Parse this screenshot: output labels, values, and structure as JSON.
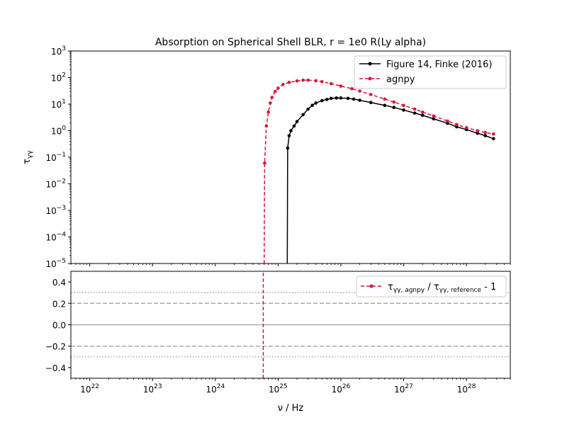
{
  "chart_data": [
    {
      "type": "line",
      "title": "Absorption on Spherical Shell BLR, r = 1e0 R(Ly alpha)",
      "xlabel": "ν / Hz",
      "ylabel": "τγγ",
      "xscale": "log",
      "yscale": "log",
      "xlim": [
        5e+21,
        5e+28
      ],
      "ylim": [
        1e-05,
        1000.0
      ],
      "x_ticks": [
        "10^22",
        "10^23",
        "10^24",
        "10^25",
        "10^26",
        "10^27",
        "10^28"
      ],
      "y_ticks": [
        "10^-5",
        "10^-4",
        "10^-3",
        "10^-2",
        "10^-1",
        "10^0",
        "10^1",
        "10^2",
        "10^3"
      ],
      "grid": false,
      "legend_position": "top-right",
      "series": [
        {
          "name": "Figure 14, Finke (2016)",
          "color": "#000000",
          "style": "solid",
          "marker": "dot",
          "x": [
            1.4e+25,
            1.42e+25,
            1.5e+25,
            1.6e+25,
            1.8e+25,
            2e+25,
            2.5e+25,
            3e+25,
            3.5e+25,
            4e+25,
            5e+25,
            6e+25,
            7e+25,
            8.5e+25,
            1e+26,
            1.3e+26,
            1.6e+26,
            2e+26,
            3e+26,
            5e+26,
            7e+26,
            1e+27,
            1.5e+27,
            2e+27,
            3e+27,
            5e+27,
            7e+27,
            1e+28,
            1.5e+28,
            2e+28,
            2.7e+28
          ],
          "y": [
            1e-05,
            0.22,
            0.65,
            1.0,
            1.5,
            2.2,
            4.0,
            6.5,
            9.0,
            11.0,
            13.5,
            15.0,
            16.5,
            17.0,
            17.0,
            16.5,
            15.5,
            14.0,
            11.5,
            9.0,
            7.5,
            6.0,
            4.6,
            3.8,
            2.8,
            1.9,
            1.4,
            1.1,
            0.8,
            0.65,
            0.5
          ]
        },
        {
          "name": "agnpy",
          "color": "#dc143c",
          "style": "dashed",
          "marker": "dot",
          "x": [
            6e+24,
            6.1e+24,
            6.5e+24,
            7e+24,
            7.5e+24,
            8e+24,
            9e+24,
            1e+25,
            1.2e+25,
            1.5e+25,
            2e+25,
            2.5e+25,
            3e+25,
            4e+25,
            5e+25,
            7e+25,
            1e+26,
            1.5e+26,
            2e+26,
            3e+26,
            5e+26,
            7e+26,
            1e+27,
            1.5e+27,
            2e+27,
            3e+27,
            5e+27,
            7e+27,
            1e+28,
            1.5e+28,
            2e+28,
            2.7e+28
          ],
          "y": [
            1e-05,
            0.06,
            1.5,
            5.0,
            11.0,
            18.0,
            30.0,
            40.0,
            55.0,
            66.0,
            75.0,
            80.0,
            80.0,
            76.0,
            70.0,
            59.0,
            48.0,
            38.0,
            31.0,
            23.0,
            15.5,
            12.0,
            9.0,
            6.5,
            5.0,
            3.6,
            2.3,
            1.7,
            1.3,
            1.0,
            0.85,
            0.75
          ]
        }
      ]
    },
    {
      "type": "line",
      "title": "",
      "xlabel": "ν / Hz",
      "ylabel": "",
      "xscale": "log",
      "xlim": [
        5e+21,
        5e+28
      ],
      "ylim": [
        -0.5,
        0.5
      ],
      "y_ticks": [
        "0.4",
        "0.2",
        "0.0",
        "−0.2",
        "−0.4"
      ],
      "x_ticks": [
        "10^22",
        "10^23",
        "10^24",
        "10^25",
        "10^26",
        "10^27",
        "10^28"
      ],
      "grid": false,
      "legend_position": "top-right",
      "reference_lines": [
        {
          "y": 0.0,
          "style": "solid"
        },
        {
          "y": 0.2,
          "style": "dashed"
        },
        {
          "y": -0.2,
          "style": "dashed"
        },
        {
          "y": 0.3,
          "style": "dotted"
        },
        {
          "y": -0.3,
          "style": "dotted"
        }
      ],
      "series": [
        {
          "name": "τγγ, agnpy / τγγ, reference - 1",
          "color": "#dc143c",
          "style": "dashed",
          "marker": "dot",
          "x": [
            5.8e+24,
            5.8e+24
          ],
          "y": [
            -0.5,
            0.5
          ]
        }
      ]
    }
  ]
}
